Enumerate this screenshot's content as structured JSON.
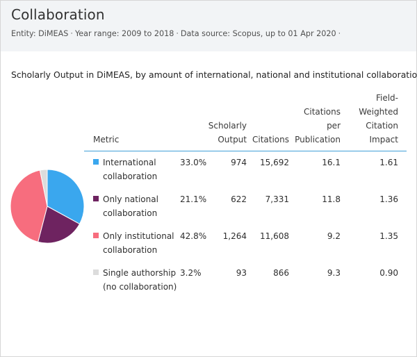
{
  "header": {
    "title": "Collaboration",
    "entity": "Entity: DiMEAS",
    "year_range": "Year range: 2009 to 2018",
    "data_source": "Data source: Scopus, up to 01 Apr 2020",
    "separator": "·"
  },
  "subtitle": "Scholarly Output in DiMEAS, by amount of international, national and institutional collaboration",
  "table": {
    "columns": {
      "metric": "Metric",
      "output_1": "Scholarly",
      "output_2": "Output",
      "citations": "Citations",
      "cpp_1": "Citations",
      "cpp_2": "per",
      "cpp_3": "Publication",
      "fwci_1": "Field-",
      "fwci_2": "Weighted",
      "fwci_3": "Citation",
      "fwci_4": "Impact"
    },
    "rows": [
      {
        "label_1": "International",
        "label_2": "collaboration",
        "share": "33.0%",
        "output": "974",
        "citations": "15,692",
        "cpp": "16.1",
        "fwci": "1.61",
        "color": "#3aa7ee"
      },
      {
        "label_1": "Only national",
        "label_2": "collaboration",
        "share": "21.1%",
        "output": "622",
        "citations": "7,331",
        "cpp": "11.8",
        "fwci": "1.36",
        "color": "#6e2360"
      },
      {
        "label_1": "Only institutional",
        "label_2": "collaboration",
        "share": "42.8%",
        "output": "1,264",
        "citations": "11,608",
        "cpp": "9.2",
        "fwci": "1.35",
        "color": "#f76d7e"
      },
      {
        "label_1": "Single authorship",
        "label_2": "(no collaboration)",
        "share": "3.2%",
        "output": "93",
        "citations": "866",
        "cpp": "9.3",
        "fwci": "0.90",
        "color": "#dcdcdc"
      }
    ]
  },
  "chart_data": {
    "type": "pie",
    "categories": [
      "International collaboration",
      "Only national collaboration",
      "Only institutional collaboration",
      "Single authorship (no collaboration)"
    ],
    "values": [
      33.0,
      21.1,
      42.8,
      3.2
    ],
    "colors": [
      "#3aa7ee",
      "#6e2360",
      "#f76d7e",
      "#dcdcdc"
    ],
    "title": ""
  }
}
